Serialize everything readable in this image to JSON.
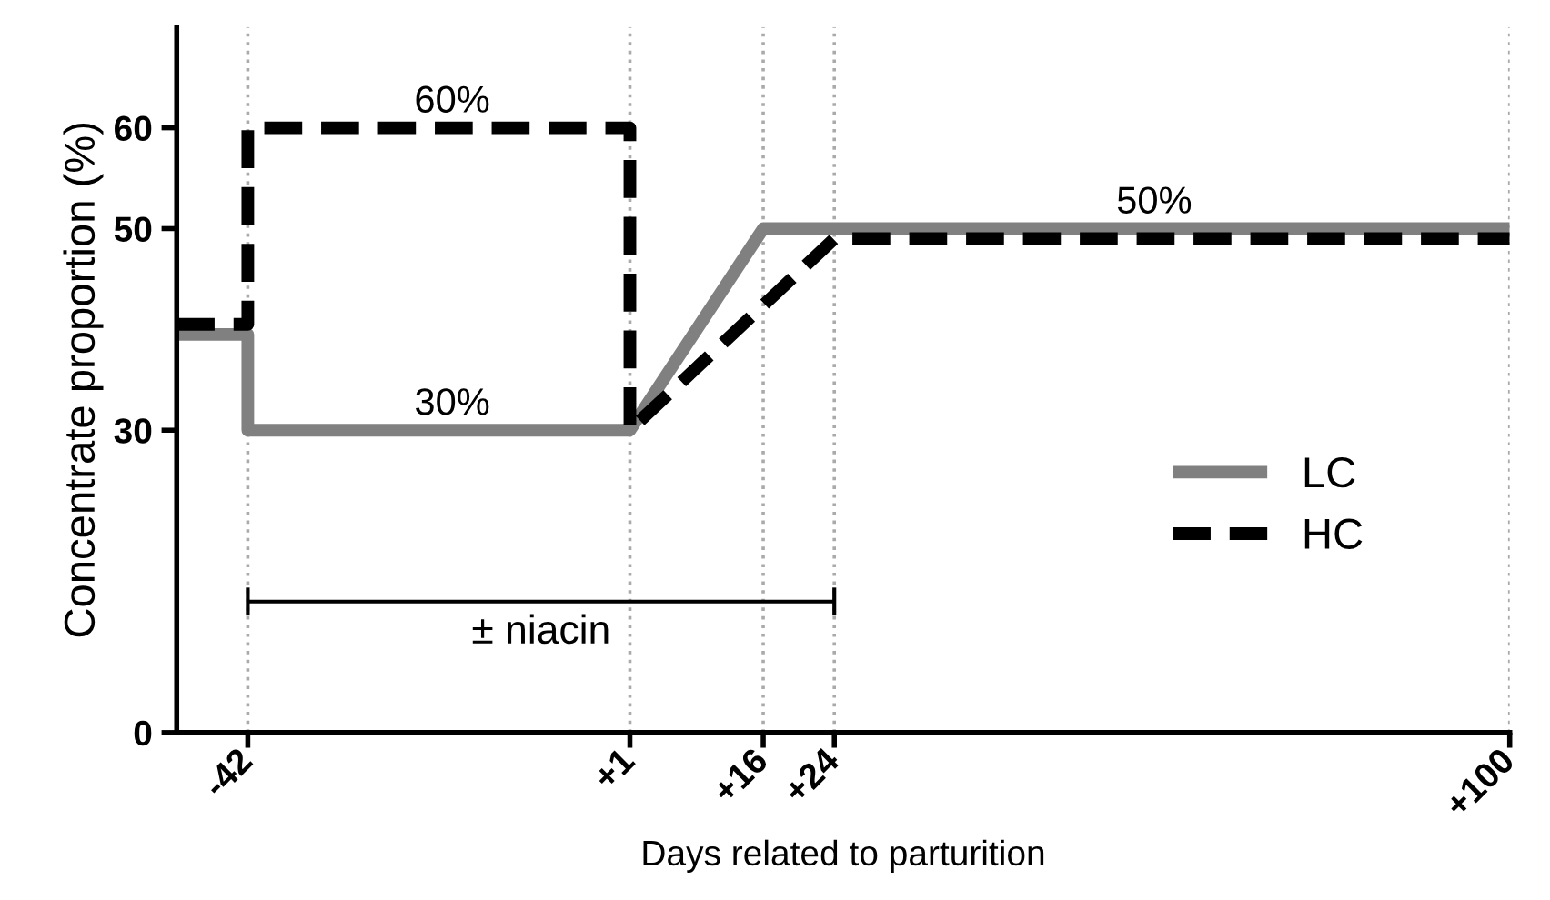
{
  "chart_data": {
    "type": "line",
    "xlabel": "Days related to parturition",
    "ylabel": "Concentrate proportion (%)",
    "xlim": [
      -50,
      100
    ],
    "ylim": [
      0,
      70
    ],
    "xticks": [
      -42,
      {
        "value": 1,
        "label": "+1"
      },
      {
        "value": 16,
        "label": "+16"
      },
      {
        "value": 24,
        "label": "+24"
      },
      {
        "value": 100,
        "label": "+100"
      }
    ],
    "yticks": [
      0,
      30,
      50,
      60
    ],
    "grid": "x",
    "legend": "right",
    "marker": "none",
    "series": [
      {
        "name": "LC",
        "color": "#808080",
        "line_style": "solid",
        "x": [
          -50,
          -42,
          -42,
          1,
          16,
          100
        ],
        "values": [
          39.5,
          39.5,
          30,
          30,
          50,
          50
        ]
      },
      {
        "name": "HC",
        "color": "#000000",
        "line_style": "dashed",
        "x": [
          -50,
          -42,
          -42,
          1,
          1,
          24,
          100
        ],
        "values": [
          40.5,
          40.5,
          60,
          60,
          30,
          49,
          49
        ]
      },
      {
        "color": "#000000",
        "line_style": "solid",
        "x": [
          -42,
          24
        ],
        "values": [
          13,
          13
        ]
      }
    ],
    "annotations": [
      {
        "text": "60%",
        "x": -19,
        "y": 60
      },
      {
        "text": "30%",
        "x": -19,
        "y": 30
      },
      {
        "text": "50%",
        "x": 60,
        "y": 50
      },
      {
        "text": "± niacin",
        "x": -9,
        "y": 13
      }
    ]
  }
}
